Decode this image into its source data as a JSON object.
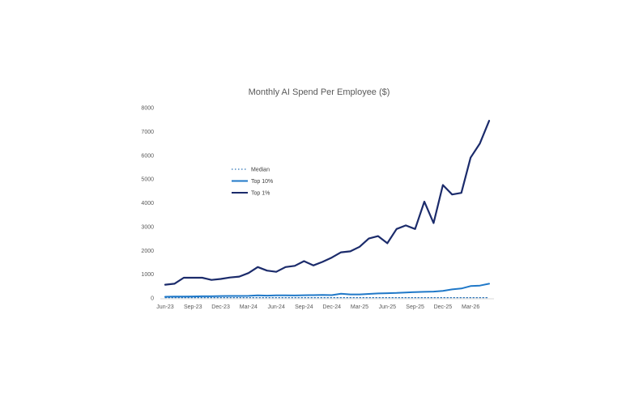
{
  "chart_data": {
    "type": "line",
    "title": "Monthly AI Spend Per Employee ($)",
    "xlabel": "",
    "ylabel": "",
    "ylim": [
      0,
      8000
    ],
    "yticks": [
      "0",
      "1000",
      "2000",
      "3000",
      "4000",
      "5000",
      "6000",
      "7000",
      "8000"
    ],
    "x": [
      "Jun-23",
      "Jul-23",
      "Aug-23",
      "Sep-23",
      "Oct-23",
      "Nov-23",
      "Dec-23",
      "Jan-24",
      "Feb-24",
      "Mar-24",
      "Apr-24",
      "May-24",
      "Jun-24",
      "Jul-24",
      "Aug-24",
      "Sep-24",
      "Oct-24",
      "Nov-24",
      "Dec-24",
      "Jan-25",
      "Feb-25",
      "Mar-25",
      "Apr-25",
      "May-25",
      "Jun-25",
      "Jul-25",
      "Aug-25",
      "Sep-25",
      "Oct-25",
      "Nov-25",
      "Dec-25",
      "Jan-26",
      "Feb-26",
      "Mar-26",
      "Apr-26",
      "May-26"
    ],
    "xtick_labels": [
      "Jun-23",
      "Sep-23",
      "Dec-23",
      "Mar-24",
      "Jun-24",
      "Sep-24",
      "Dec-24",
      "Mar-25",
      "Jun-25",
      "Sep-25",
      "Dec-25",
      "Mar-26"
    ],
    "legend_position": "upper-left",
    "grid": false,
    "series": [
      {
        "name": "Median",
        "color": "#2e75b6",
        "style": "dotted",
        "values": [
          15,
          15,
          15,
          15,
          15,
          15,
          15,
          15,
          15,
          15,
          15,
          15,
          15,
          15,
          15,
          15,
          15,
          15,
          15,
          15,
          15,
          15,
          15,
          15,
          15,
          15,
          15,
          15,
          15,
          15,
          15,
          15,
          15,
          15,
          15,
          15
        ]
      },
      {
        "name": "Top 10%",
        "color": "#1f78c8",
        "style": "solid",
        "values": [
          50,
          60,
          60,
          65,
          70,
          70,
          80,
          85,
          85,
          90,
          110,
          100,
          110,
          110,
          105,
          115,
          120,
          125,
          120,
          180,
          150,
          150,
          170,
          190,
          200,
          210,
          230,
          250,
          260,
          270,
          300,
          360,
          400,
          500,
          520,
          600
        ]
      },
      {
        "name": "Top 1%",
        "color": "#1b2b6b",
        "style": "solid",
        "values": [
          560,
          600,
          850,
          850,
          850,
          760,
          800,
          860,
          900,
          1050,
          1300,
          1150,
          1100,
          1300,
          1350,
          1550,
          1370,
          1520,
          1700,
          1920,
          1960,
          2150,
          2500,
          2600,
          2300,
          2900,
          3050,
          2900,
          4050,
          3150,
          4750,
          4350,
          4420,
          5900,
          6500,
          7450
        ]
      }
    ]
  }
}
